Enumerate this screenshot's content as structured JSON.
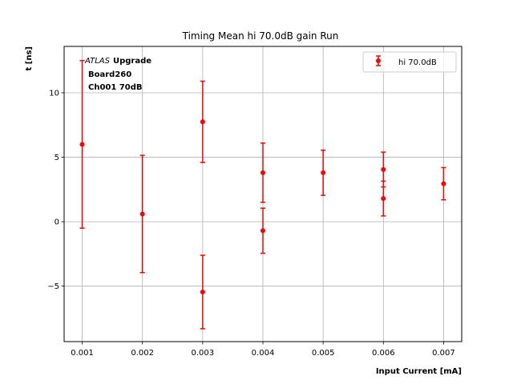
{
  "chart_data": {
    "type": "scatter",
    "title": "Timing Mean hi 70.0dB gain Run",
    "xlabel": "Input Current [mA]",
    "ylabel": "t [ns]",
    "xlim": [
      0.0007,
      0.0073
    ],
    "ylim": [
      -9.3,
      13.6
    ],
    "xticks": [
      0.001,
      0.002,
      0.003,
      0.004,
      0.005,
      0.006,
      0.007
    ],
    "xtick_labels": [
      "0.001",
      "0.002",
      "0.003",
      "0.004",
      "0.005",
      "0.006",
      "0.007"
    ],
    "yticks": [
      -5,
      0,
      5,
      10
    ],
    "ytick_labels": [
      "−5",
      "0",
      "5",
      "10"
    ],
    "grid": true,
    "legend_position": "top-right",
    "annotation": {
      "atlas": "ATLAS",
      "upgrade": "Upgrade",
      "line2": "Board260",
      "line3": "Ch001 70dB"
    },
    "series": [
      {
        "name": "hi 70.0dB",
        "color": "#ff0000",
        "points": [
          {
            "x": 0.001,
            "y": 6.0,
            "yerr": 6.5
          },
          {
            "x": 0.002,
            "y": 0.6,
            "yerr": 4.55
          },
          {
            "x": 0.003,
            "y": 7.75,
            "yerr": 3.15
          },
          {
            "x": 0.003,
            "y": -5.45,
            "yerr": 2.85
          },
          {
            "x": 0.004,
            "y": 3.8,
            "yerr": 2.3
          },
          {
            "x": 0.004,
            "y": -0.7,
            "yerr": 1.75
          },
          {
            "x": 0.005,
            "y": 3.8,
            "yerr": 1.75
          },
          {
            "x": 0.006,
            "y": 4.05,
            "yerr": 1.35
          },
          {
            "x": 0.006,
            "y": 1.8,
            "yerr": 1.35
          },
          {
            "x": 0.007,
            "y": 2.95,
            "yerr": 1.25
          }
        ]
      }
    ]
  }
}
